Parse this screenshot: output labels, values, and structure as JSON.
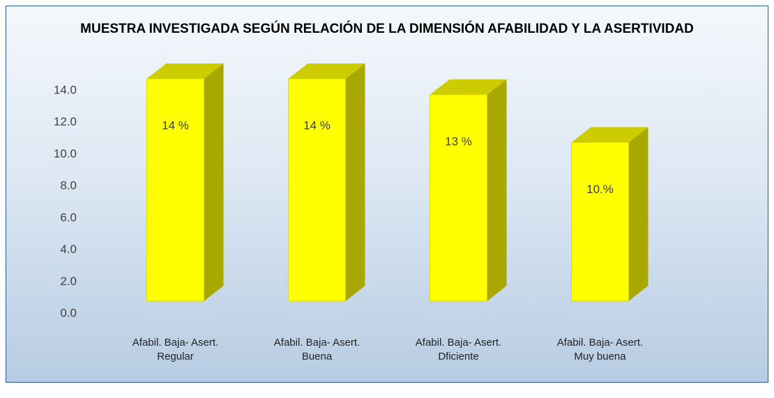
{
  "chart_data": {
    "type": "bar3d",
    "title": "MUESTRA INVESTIGADA SEGÚN RELACIÓN DE LA DIMENSIÓN AFABILIDAD Y LA ASERTIVIDAD",
    "categories": [
      "Afabil. Baja- Asert. Regular",
      "Afabil. Baja- Asert. Buena",
      "Afabil. Baja- Asert. Dficiente",
      "Afabil. Baja- Asert. Muy buena"
    ],
    "values": [
      14,
      14,
      13,
      10
    ],
    "value_labels": [
      "14 %",
      "14 %",
      "13 %",
      "10.%"
    ],
    "color": "#ffff00",
    "ylim": [
      0,
      14
    ],
    "yticks": [
      {
        "value": 0,
        "label": "0.0"
      },
      {
        "value": 2,
        "label": "2.0"
      },
      {
        "value": 4,
        "label": "4.0"
      },
      {
        "value": 6,
        "label": "6.0"
      },
      {
        "value": 8,
        "label": "8.0"
      },
      {
        "value": 10,
        "label": "10.0"
      },
      {
        "value": 12,
        "label": "12.0"
      },
      {
        "value": 14,
        "label": "14.0"
      }
    ]
  }
}
